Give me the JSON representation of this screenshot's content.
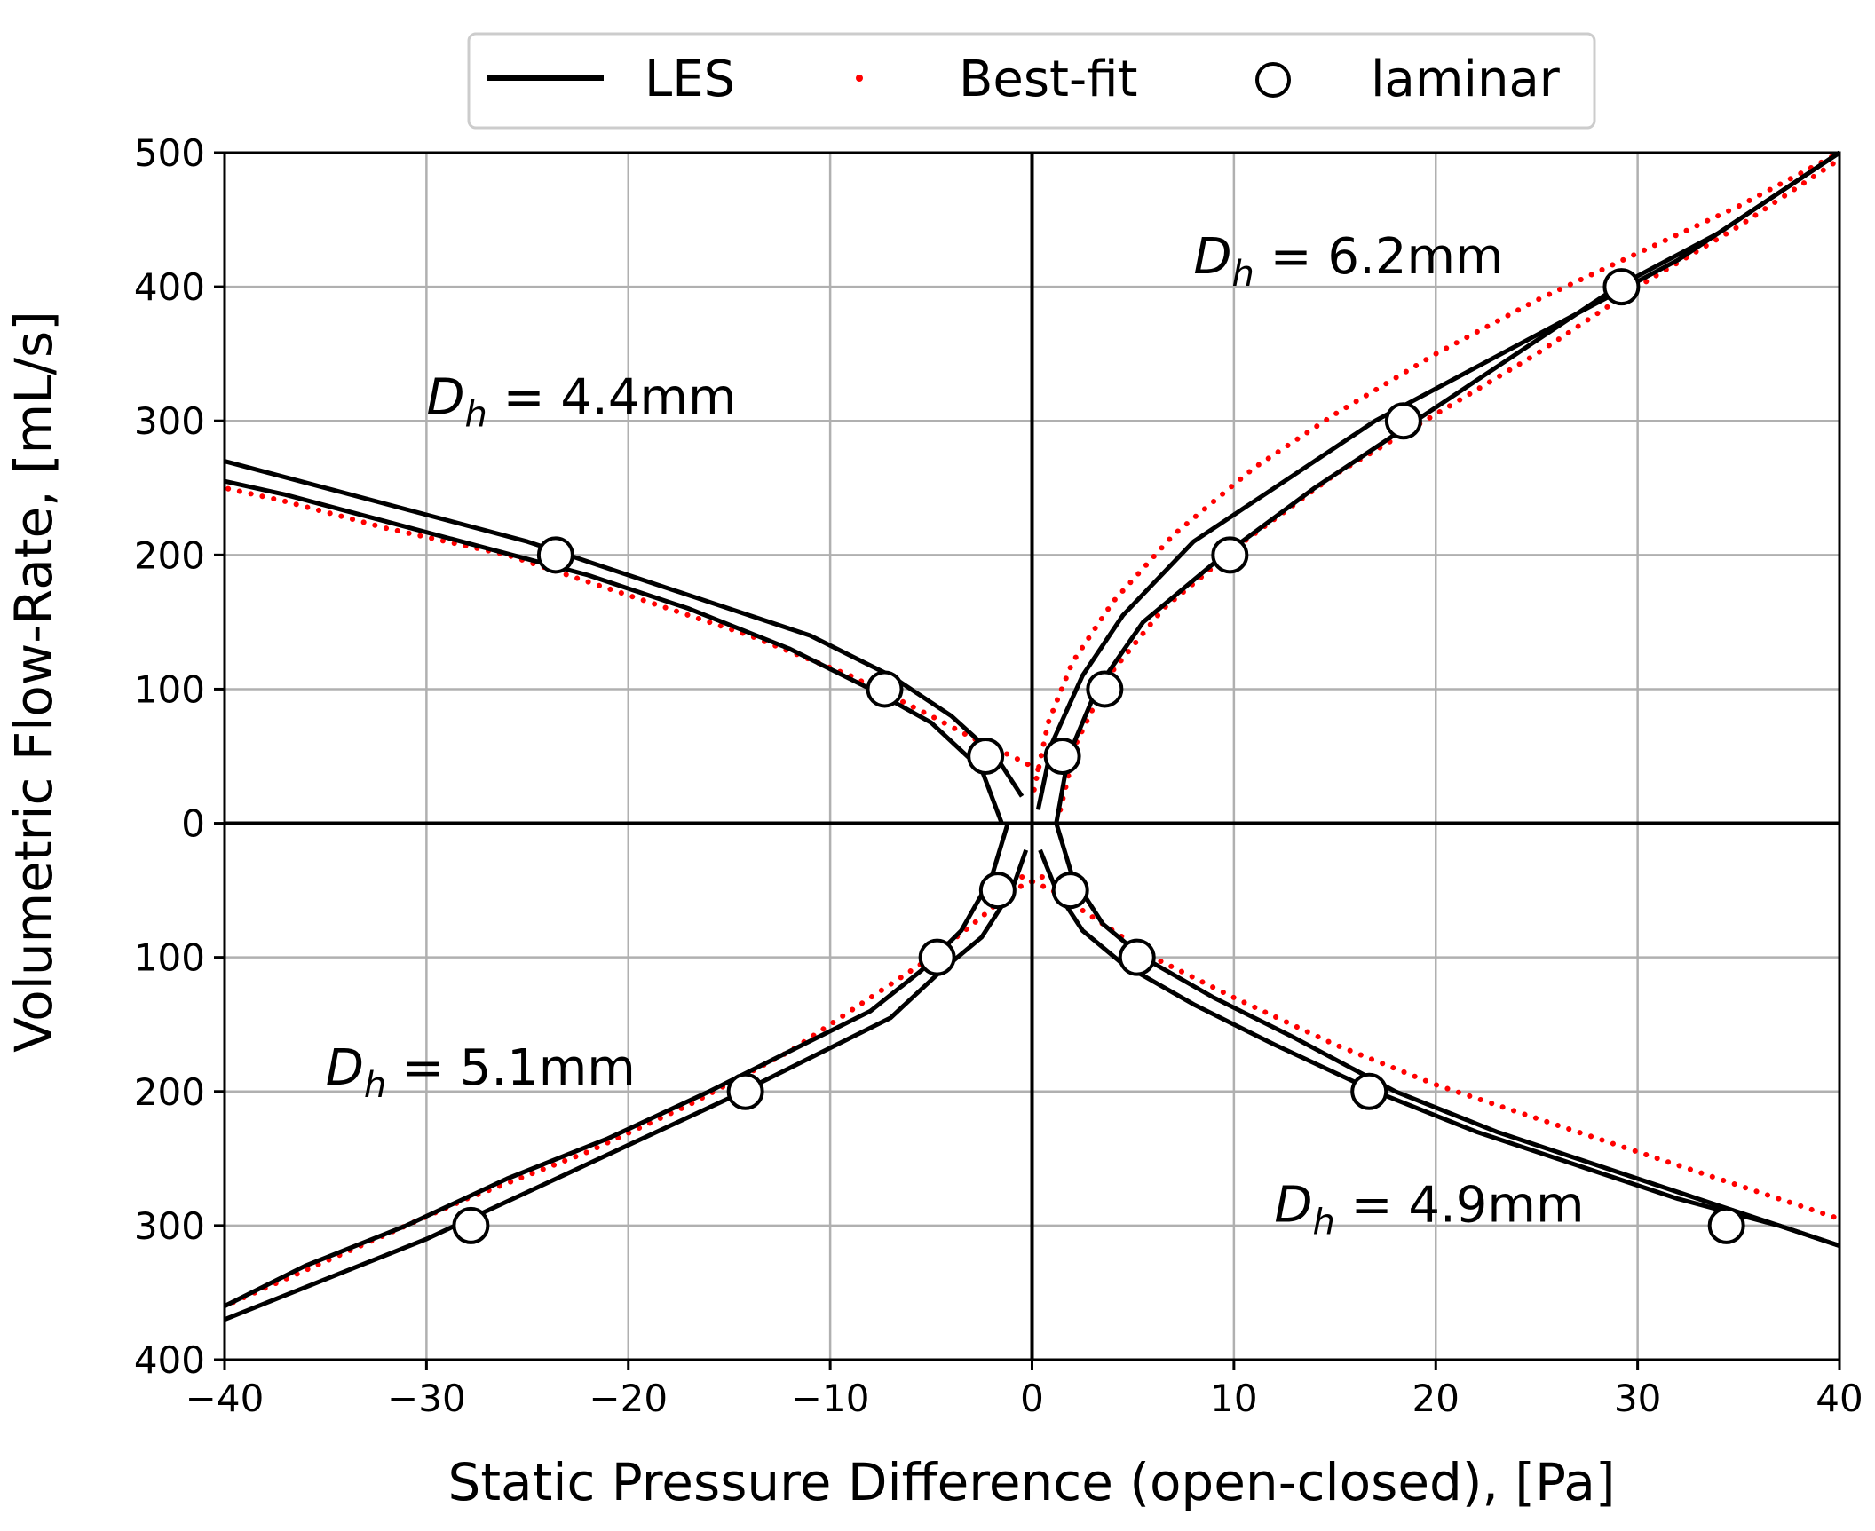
{
  "chart_data": {
    "type": "line",
    "title": "",
    "xlabel": "Static Pressure Difference (open-closed), [Pa]",
    "ylabel": "Volumetric Flow-Rate, [mL/s]",
    "xlim": [
      -40,
      40
    ],
    "ylim": [
      -400,
      500
    ],
    "grid": true,
    "legend_placement": "top-center",
    "x_ticks": [
      -40,
      -30,
      -20,
      -10,
      0,
      10,
      20,
      30,
      40
    ],
    "x_tick_labels": [
      "−40",
      "−30",
      "−20",
      "−10",
      "0",
      "10",
      "20",
      "30",
      "40"
    ],
    "y_ticks": [
      500,
      400,
      300,
      200,
      100,
      0,
      -100,
      -200,
      -300,
      -400
    ],
    "y_tick_labels": [
      "500",
      "400",
      "300",
      "200",
      "100",
      "0",
      "100",
      "200",
      "300",
      "400"
    ],
    "legend": [
      {
        "label": "LES",
        "style": "solid-line",
        "color": "#000000"
      },
      {
        "label": "Best-fit",
        "style": "dotted",
        "color": "#ff0000"
      },
      {
        "label": "laminar",
        "style": "open-circle",
        "color": "#000000"
      }
    ],
    "annotations": [
      {
        "prefix": "D",
        "sub": "h",
        "suffix": " = 6.2mm",
        "x": 8,
        "y": 410
      },
      {
        "prefix": "D",
        "sub": "h",
        "suffix": " = 4.4mm",
        "x": -30,
        "y": 305
      },
      {
        "prefix": "D",
        "sub": "h",
        "suffix": " = 5.1mm",
        "x": -35,
        "y": -195
      },
      {
        "prefix": "D",
        "sub": "h",
        "suffix": " = 4.9mm",
        "x": 12,
        "y": -297
      }
    ],
    "curves": [
      {
        "name": "Dh = 6.2mm",
        "quadrant": "x>0, y>0",
        "les_upper": {
          "x": [
            0.3,
            1,
            2.5,
            4.5,
            8,
            12,
            17,
            22,
            27,
            32,
            36,
            40
          ],
          "y": [
            10,
            60,
            110,
            155,
            210,
            250,
            300,
            340,
            380,
            420,
            460,
            500
          ]
        },
        "les_lower": {
          "x": [
            1.2,
            1.8,
            3.2,
            5.5,
            9.5,
            14,
            19,
            24,
            29,
            34,
            38,
            40
          ],
          "y": [
            0,
            50,
            100,
            150,
            200,
            250,
            300,
            350,
            400,
            440,
            480,
            500
          ]
        },
        "best_fit_upper": {
          "x": [
            0.1,
            0.8,
            2,
            4,
            7,
            11,
            15,
            20,
            25,
            30,
            35,
            40
          ],
          "y": [
            25,
            75,
            120,
            165,
            215,
            265,
            305,
            350,
            390,
            425,
            460,
            500
          ]
        },
        "best_fit_lower": {
          "x": [
            1.4,
            2.2,
            3.8,
            6.5,
            10.5,
            15,
            20,
            25,
            30,
            35,
            40
          ],
          "y": [
            10,
            60,
            110,
            160,
            210,
            260,
            305,
            350,
            400,
            445,
            495
          ]
        },
        "laminar": {
          "x": [
            1.5,
            3.6,
            9.8,
            18.4,
            29.2
          ],
          "y": [
            50,
            100,
            200,
            300,
            400
          ]
        }
      },
      {
        "name": "Dh = 4.4mm",
        "quadrant": "x<0, y>0",
        "les_upper": {
          "x": [
            -0.5,
            -1.8,
            -4,
            -7,
            -11,
            -15,
            -20,
            -25,
            -30,
            -35,
            -40
          ],
          "y": [
            20,
            50,
            80,
            110,
            140,
            160,
            185,
            210,
            230,
            250,
            270
          ]
        },
        "les_lower": {
          "x": [
            -1.5,
            -2.5,
            -5,
            -8,
            -12,
            -17,
            -22,
            -27,
            -32,
            -37,
            -40
          ],
          "y": [
            0,
            40,
            75,
            100,
            130,
            160,
            185,
            205,
            225,
            245,
            255
          ]
        },
        "best_fit": {
          "x": [
            0.3,
            -1,
            -2.5,
            -5,
            -9,
            -14,
            -20,
            -26,
            -32,
            -37,
            -40
          ],
          "y": [
            40,
            50,
            60,
            80,
            110,
            140,
            170,
            200,
            220,
            240,
            250
          ]
        },
        "laminar": {
          "x": [
            -2.3,
            -7.3,
            -23.6
          ],
          "y": [
            50,
            100,
            200
          ]
        }
      },
      {
        "name": "Dh = 5.1mm",
        "quadrant": "x<0, y<0",
        "les_upper": {
          "x": [
            -1.2,
            -2,
            -3.5,
            -5.5,
            -8,
            -12,
            -16,
            -21,
            -26,
            -31,
            -36,
            -40
          ],
          "y": [
            0,
            -40,
            -80,
            -110,
            -140,
            -170,
            -200,
            -235,
            -265,
            -300,
            -330,
            -360
          ]
        },
        "les_lower": {
          "x": [
            -0.3,
            -1,
            -2.5,
            -4.5,
            -7,
            -11,
            -15,
            -20,
            -25,
            -30,
            -35,
            -40
          ],
          "y": [
            -20,
            -50,
            -85,
            -110,
            -145,
            -175,
            -205,
            -240,
            -275,
            -310,
            -340,
            -370
          ]
        },
        "best_fit": {
          "x": [
            0.5,
            -1,
            -2.5,
            -5,
            -8,
            -12,
            -17,
            -22,
            -28,
            -34,
            -40
          ],
          "y": [
            -40,
            -50,
            -70,
            -100,
            -130,
            -170,
            -210,
            -245,
            -280,
            -320,
            -360
          ]
        },
        "laminar": {
          "x": [
            -1.7,
            -4.7,
            -14.2,
            -27.8
          ],
          "y": [
            -50,
            -100,
            -200,
            -300
          ]
        }
      },
      {
        "name": "Dh = 4.9mm",
        "quadrant": "x>0, y<0",
        "les_upper": {
          "x": [
            1.2,
            2,
            3.5,
            5.5,
            9,
            13,
            18,
            23,
            28,
            33,
            38,
            40
          ],
          "y": [
            0,
            -40,
            -75,
            -100,
            -130,
            -160,
            -200,
            -230,
            -255,
            -280,
            -305,
            -315
          ]
        },
        "les_lower": {
          "x": [
            0.4,
            1.2,
            2.5,
            4.5,
            8,
            12,
            17,
            22,
            27,
            32,
            37,
            40
          ],
          "y": [
            -20,
            -50,
            -80,
            -105,
            -135,
            -165,
            -200,
            -230,
            -255,
            -280,
            -300,
            -315
          ]
        },
        "best_fit": {
          "x": [
            -0.5,
            1,
            3,
            6,
            10,
            15,
            20,
            25,
            30,
            35,
            40
          ],
          "y": [
            -40,
            -50,
            -70,
            -100,
            -130,
            -165,
            -195,
            -220,
            -245,
            -270,
            -295
          ]
        },
        "laminar": {
          "x": [
            1.9,
            5.2,
            16.7,
            34.4
          ],
          "y": [
            -50,
            -100,
            -200,
            -300
          ]
        }
      }
    ]
  }
}
